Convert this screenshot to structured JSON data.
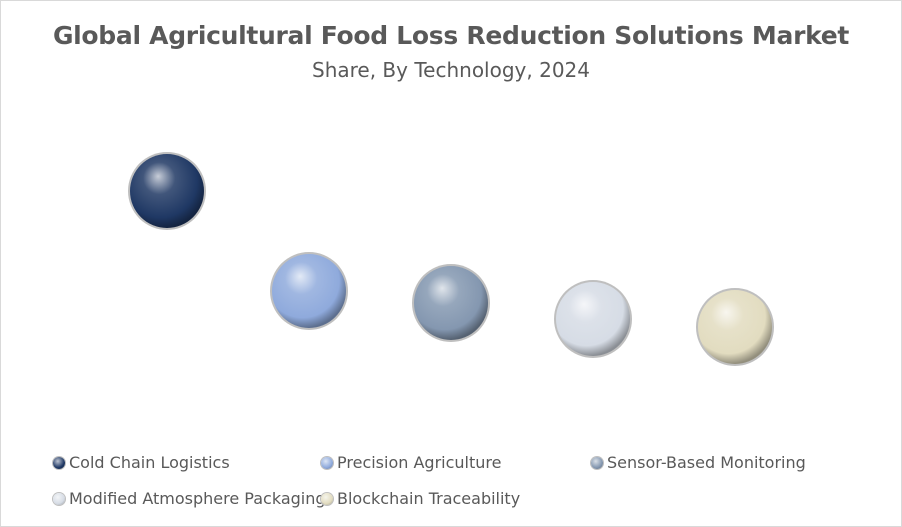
{
  "chart_data": {
    "type": "scatter",
    "title": "Global Agricultural Food Loss Reduction Solutions Market",
    "subtitle": "Share, By Technology, 2024",
    "legend_position": "bottom",
    "grid": false,
    "categories": [
      "Cold Chain Logistics",
      "Precision Agriculture",
      "Sensor-Based Monitoring",
      "Modified Atmosphere Packaging",
      "Blockchain Traceability"
    ],
    "values": [
      6,
      3.5,
      3.2,
      2.8,
      2.6
    ],
    "ylim": [
      0,
      8
    ],
    "series_colors": [
      "#1f3864",
      "#8faadc",
      "#8497b0",
      "#d6dce5",
      "#e2dcc0"
    ]
  }
}
